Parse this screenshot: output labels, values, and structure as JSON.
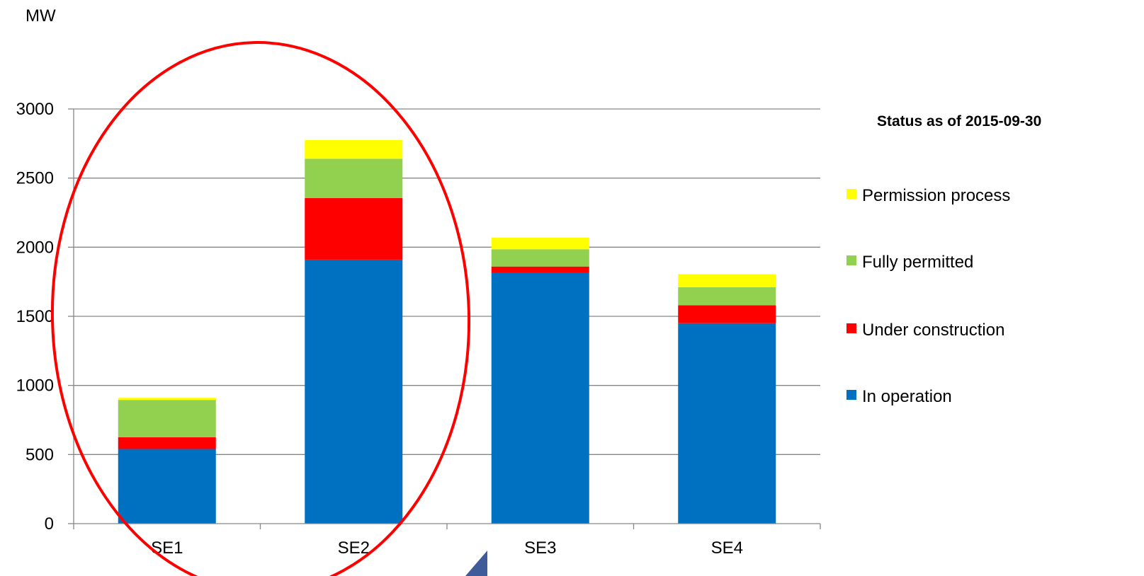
{
  "chart_data": {
    "type": "bar",
    "stacked": true,
    "ylabel": "MW",
    "ylim": [
      0,
      3000
    ],
    "yticks": [
      0,
      500,
      1000,
      1500,
      2000,
      2500,
      3000
    ],
    "categories": [
      "SE1",
      "SE2",
      "SE3",
      "SE4"
    ],
    "series": [
      {
        "name": "In operation",
        "color": "#0070C0",
        "values": [
          540,
          1910,
          1815,
          1450
        ]
      },
      {
        "name": "Under construction",
        "color": "#FF0000",
        "values": [
          85,
          445,
          45,
          130
        ]
      },
      {
        "name": "Fully permitted",
        "color": "#92D050",
        "values": [
          270,
          285,
          125,
          130
        ]
      },
      {
        "name": "Permission process",
        "color": "#FFFF00",
        "values": [
          15,
          135,
          85,
          95
        ]
      }
    ],
    "grid": true,
    "legend": {
      "title": "Status as of 2015-09-30",
      "placement": "right",
      "order": [
        "Permission process",
        "Fully permitted",
        "Under construction",
        "In operation"
      ]
    },
    "annotations": [
      {
        "type": "ellipse",
        "color": "#FF0000",
        "encloses": [
          "SE1",
          "SE2"
        ]
      }
    ]
  }
}
